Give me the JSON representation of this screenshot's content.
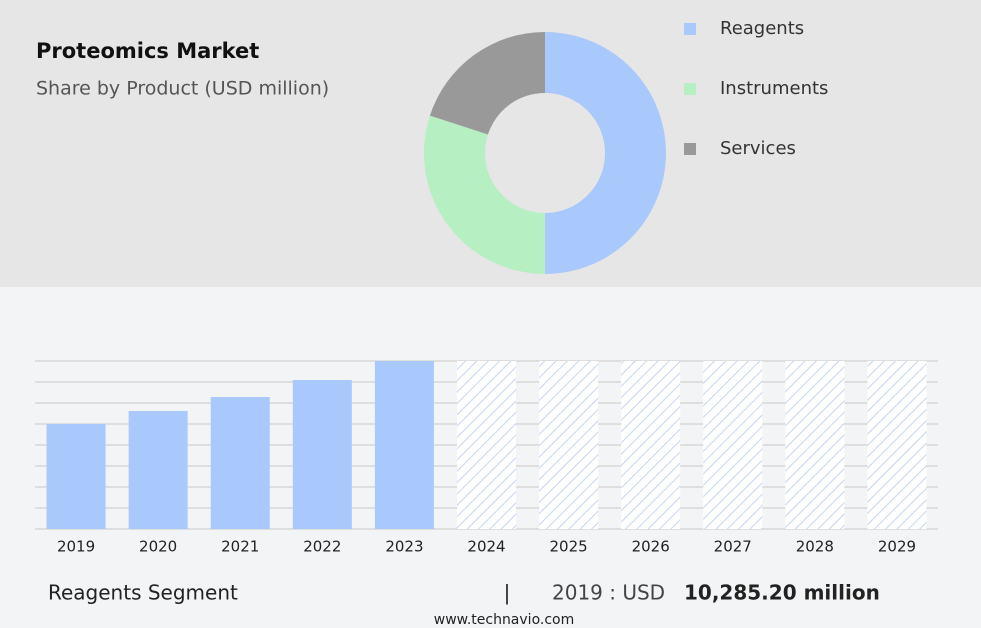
{
  "chart_data": [
    {
      "type": "pie",
      "title": "Proteomics Market",
      "subtitle": "Share by Product (USD million)",
      "categories": [
        "Reagents",
        "Instruments",
        "Services"
      ],
      "values": [
        50,
        30,
        20
      ],
      "colors": [
        "#a9c8fb",
        "#b6efc1",
        "#999999"
      ],
      "hole": true
    },
    {
      "type": "bar",
      "categories": [
        "2019",
        "2020",
        "2021",
        "2022",
        "2023",
        "2024",
        "2025",
        "2026",
        "2027",
        "2028",
        "2029"
      ],
      "values": [
        10285.2,
        11558,
        12930,
        14595,
        16456,
        null,
        null,
        null,
        null,
        null,
        null
      ],
      "color": "#a9c8fb",
      "grid": true
    }
  ],
  "footer": {
    "segment": "Reagents Segment",
    "separator": "|",
    "year_text": "2019 : USD",
    "amount": "10,285.20 million",
    "source": "www.technavio.com"
  }
}
